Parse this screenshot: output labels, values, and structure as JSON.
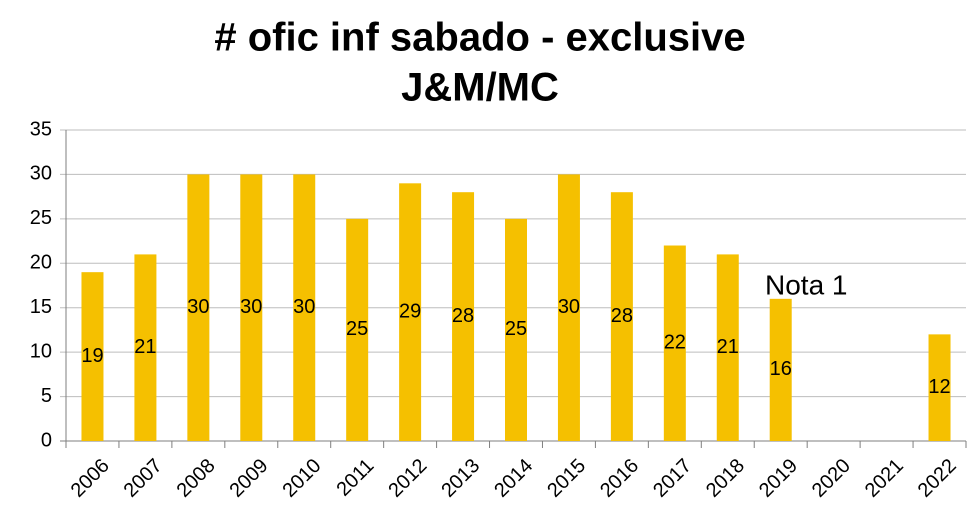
{
  "chart_data": {
    "type": "bar",
    "title": [
      "# ofic inf sabado - exclusive",
      "J&M/MC"
    ],
    "categories": [
      "2006",
      "2007",
      "2008",
      "2009",
      "2010",
      "2011",
      "2012",
      "2013",
      "2014",
      "2015",
      "2016",
      "2017",
      "2018",
      "2019",
      "2020",
      "2021",
      "2022"
    ],
    "values": [
      19,
      21,
      30,
      30,
      30,
      25,
      29,
      28,
      25,
      30,
      28,
      22,
      21,
      16,
      null,
      null,
      12
    ],
    "color": "#f5c000",
    "ylim": [
      0,
      35
    ],
    "yticks": [
      0,
      5,
      10,
      15,
      20,
      25,
      30,
      35
    ],
    "grid": true,
    "annotation": "Nota 1"
  }
}
